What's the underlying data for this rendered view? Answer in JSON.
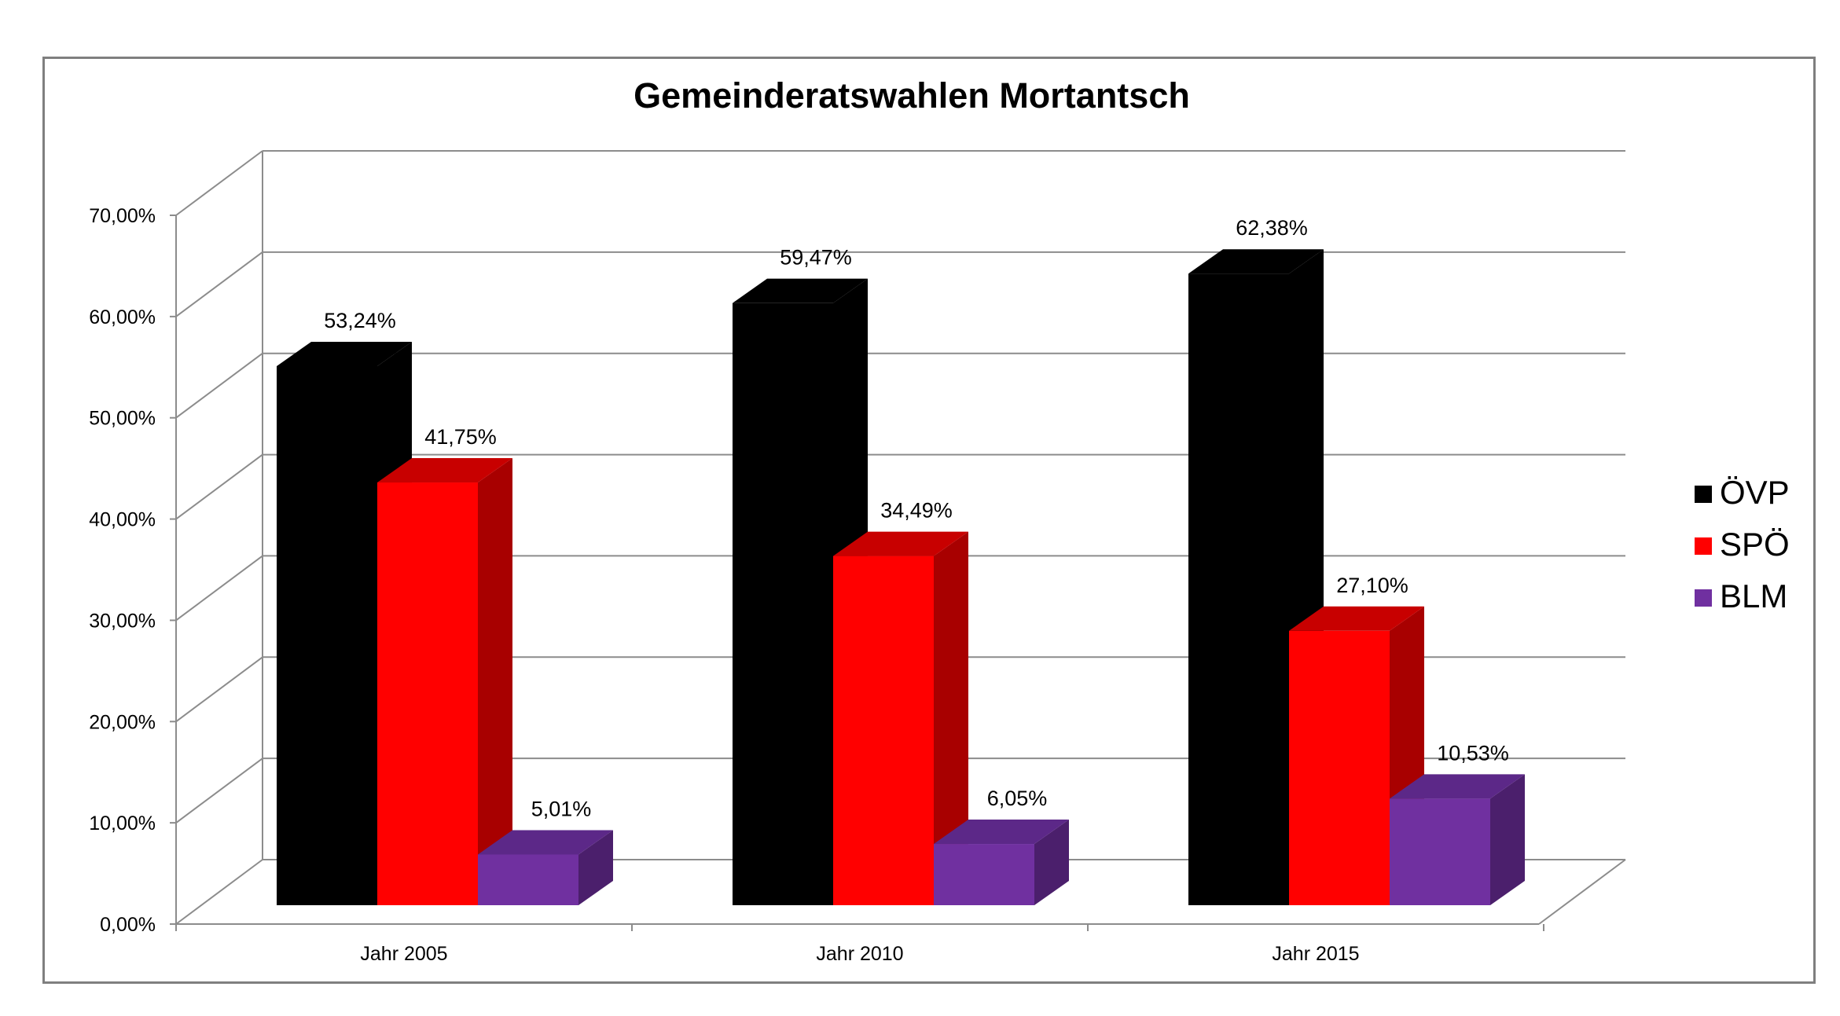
{
  "chart_data": {
    "type": "bar",
    "title": "Gemeinderatswahlen Mortantsch",
    "categories": [
      "Jahr 2005",
      "Jahr 2010",
      "Jahr 2015"
    ],
    "series": [
      {
        "name": "ÖVP",
        "color": "#000000",
        "side": "#000000",
        "top": "#000000",
        "values": [
          53.24,
          59.47,
          62.38
        ],
        "labels": [
          "53,24%",
          "59,47%",
          "62,38%"
        ]
      },
      {
        "name": "SPÖ",
        "color": "#ff0000",
        "side": "#a80000",
        "top": "#c80000",
        "values": [
          41.75,
          34.49,
          27.1
        ],
        "labels": [
          "41,75%",
          "34,49%",
          "27,10%"
        ]
      },
      {
        "name": "BLM",
        "color": "#7030a0",
        "side": "#4b1f6c",
        "top": "#5c2888",
        "values": [
          5.01,
          6.05,
          10.53
        ],
        "labels": [
          "5,01%",
          "6,05%",
          "10,53%"
        ]
      }
    ],
    "y_ticks": [
      "0,00%",
      "10,00%",
      "20,00%",
      "30,00%",
      "40,00%",
      "50,00%",
      "60,00%",
      "70,00%"
    ],
    "ylim": [
      0,
      70
    ],
    "grid": true,
    "legend_position": "right",
    "gridline_color": "#8c8c8c"
  }
}
